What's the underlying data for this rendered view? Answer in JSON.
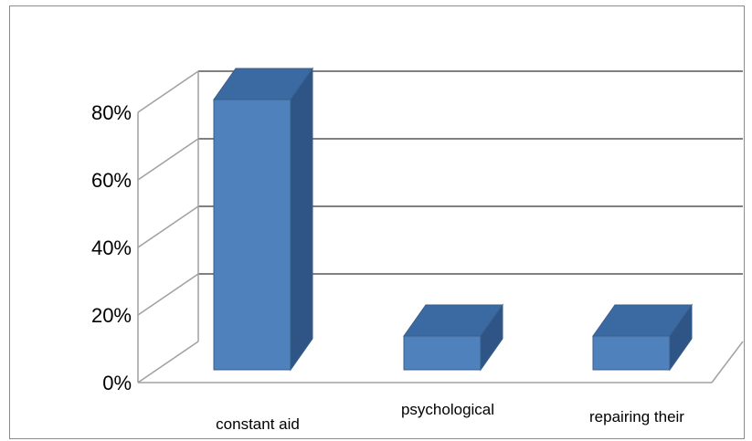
{
  "chart_data": {
    "type": "bar",
    "style": "3d-column",
    "categories": [
      "constant aid",
      "psychological",
      "repairing their"
    ],
    "values": [
      0.8,
      0.1,
      0.1
    ],
    "ylim": [
      0,
      0.8
    ],
    "yticks": [
      0,
      0.2,
      0.4,
      0.6,
      0.8
    ],
    "ytick_labels": [
      "0%",
      "20%",
      "40%",
      "60%",
      "80%"
    ],
    "title": "",
    "xlabel": "",
    "ylabel": "",
    "grid": true,
    "legend": "none",
    "colors": {
      "bar_front": "#4f81bd",
      "bar_side": "#2e5585",
      "bar_top": "#3b6aa3",
      "bar_edge": "#385d8a",
      "grid": "#808080",
      "wall": "#a0a0a0"
    }
  }
}
